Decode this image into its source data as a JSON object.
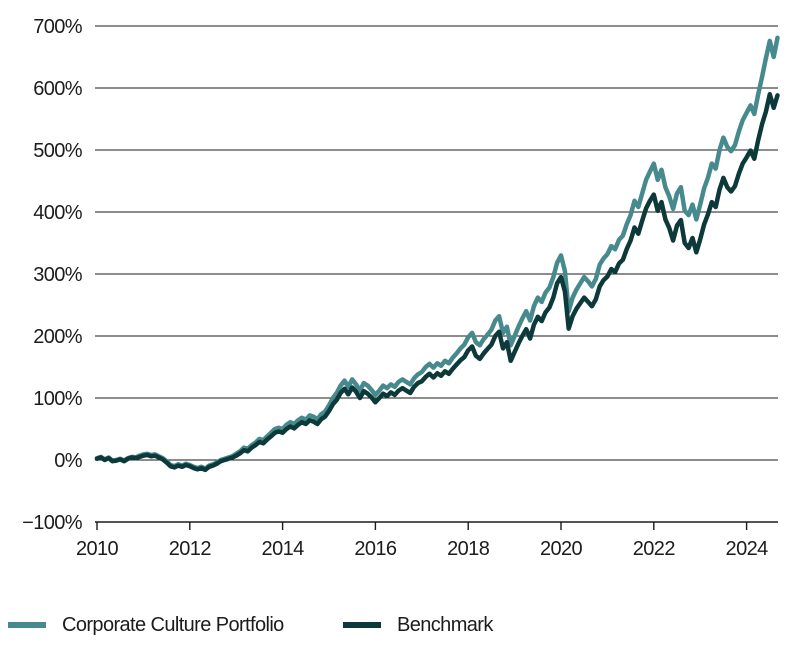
{
  "figure": {
    "legend": {
      "items": [
        {
          "label": "Corporate Culture Portfolio",
          "color": "#478A8D"
        },
        {
          "label": "Benchmark",
          "color": "#0D393B"
        }
      ]
    }
  },
  "colors": {
    "background": "#FFFFFF",
    "axis": "#1A1A1A",
    "text": "#1C1C1C",
    "portfolio_line": "#478A8D",
    "benchmark_line": "#0D393B"
  },
  "chart_data": {
    "type": "line",
    "title": "",
    "xlabel": "",
    "ylabel": "",
    "grid": "horizontal",
    "legend_position": "bottom-left",
    "x_axis": {
      "min": 2010,
      "max": 2024.9,
      "ticks": [
        2010,
        2012,
        2014,
        2016,
        2018,
        2020,
        2022,
        2024
      ],
      "tick_labels": [
        "2010",
        "2012",
        "2014",
        "2016",
        "2018",
        "2020",
        "2022",
        "2024"
      ]
    },
    "y_axis": {
      "min": -100,
      "max": 700,
      "unit": "%",
      "ticks": [
        700,
        600,
        500,
        400,
        300,
        200,
        100,
        0,
        -100
      ],
      "tick_labels": [
        "700%",
        "600%",
        "500%",
        "400%",
        "300%",
        "200%",
        "100%",
        "0%",
        "−100%"
      ]
    },
    "x_start_year": 2010,
    "points_per_year": 12,
    "series": [
      {
        "name": "Corporate Culture Portfolio",
        "color": "#478A8D",
        "values": [
          3,
          5,
          1,
          4,
          -1,
          0,
          2,
          -1,
          3,
          5,
          4,
          7,
          9,
          10,
          8,
          9,
          6,
          3,
          -2,
          -8,
          -10,
          -7,
          -9,
          -6,
          -8,
          -11,
          -13,
          -11,
          -14,
          -9,
          -7,
          -4,
          0,
          2,
          4,
          6,
          10,
          14,
          20,
          18,
          24,
          28,
          34,
          32,
          38,
          44,
          50,
          52,
          50,
          57,
          61,
          58,
          64,
          68,
          65,
          72,
          70,
          66,
          74,
          78,
          88,
          100,
          108,
          120,
          128,
          118,
          130,
          122,
          112,
          124,
          120,
          113,
          105,
          112,
          120,
          116,
          122,
          118,
          126,
          130,
          126,
          122,
          132,
          138,
          142,
          150,
          155,
          149,
          156,
          152,
          160,
          156,
          165,
          172,
          180,
          186,
          198,
          205,
          190,
          185,
          195,
          202,
          210,
          225,
          232,
          205,
          215,
          185,
          200,
          215,
          228,
          240,
          225,
          248,
          262,
          255,
          270,
          278,
          295,
          318,
          330,
          305,
          240,
          262,
          275,
          285,
          295,
          288,
          280,
          292,
          315,
          325,
          332,
          345,
          340,
          355,
          362,
          380,
          395,
          418,
          408,
          430,
          452,
          465,
          478,
          452,
          468,
          440,
          425,
          405,
          430,
          440,
          402,
          395,
          412,
          388,
          412,
          438,
          455,
          478,
          470,
          500,
          520,
          505,
          498,
          508,
          530,
          548,
          560,
          572,
          558,
          590,
          618,
          648,
          676,
          650,
          681
        ]
      },
      {
        "name": "Benchmark",
        "color": "#0D393B",
        "values": [
          2,
          4,
          0,
          3,
          -2,
          -1,
          1,
          -2,
          2,
          4,
          3,
          5,
          7,
          8,
          6,
          7,
          4,
          1,
          -4,
          -10,
          -12,
          -9,
          -11,
          -8,
          -10,
          -13,
          -15,
          -13,
          -16,
          -11,
          -9,
          -6,
          -2,
          0,
          2,
          4,
          7,
          11,
          16,
          14,
          20,
          24,
          29,
          27,
          33,
          38,
          44,
          46,
          44,
          50,
          54,
          51,
          57,
          61,
          58,
          64,
          62,
          58,
          66,
          70,
          79,
          90,
          97,
          108,
          115,
          106,
          117,
          110,
          100,
          111,
          107,
          101,
          93,
          100,
          107,
          103,
          109,
          105,
          112,
          116,
          112,
          108,
          118,
          124,
          127,
          134,
          139,
          133,
          140,
          136,
          143,
          139,
          147,
          154,
          161,
          166,
          177,
          183,
          168,
          163,
          172,
          179,
          186,
          200,
          207,
          180,
          190,
          160,
          174,
          188,
          200,
          211,
          196,
          218,
          231,
          224,
          238,
          246,
          262,
          285,
          295,
          272,
          212,
          232,
          244,
          253,
          262,
          255,
          248,
          259,
          280,
          290,
          296,
          308,
          303,
          317,
          323,
          340,
          354,
          375,
          365,
          386,
          406,
          418,
          428,
          402,
          416,
          388,
          374,
          354,
          378,
          387,
          350,
          342,
          358,
          335,
          356,
          380,
          396,
          416,
          408,
          436,
          455,
          440,
          433,
          442,
          462,
          478,
          488,
          499,
          486,
          516,
          542,
          562,
          590,
          568,
          588
        ]
      }
    ]
  }
}
